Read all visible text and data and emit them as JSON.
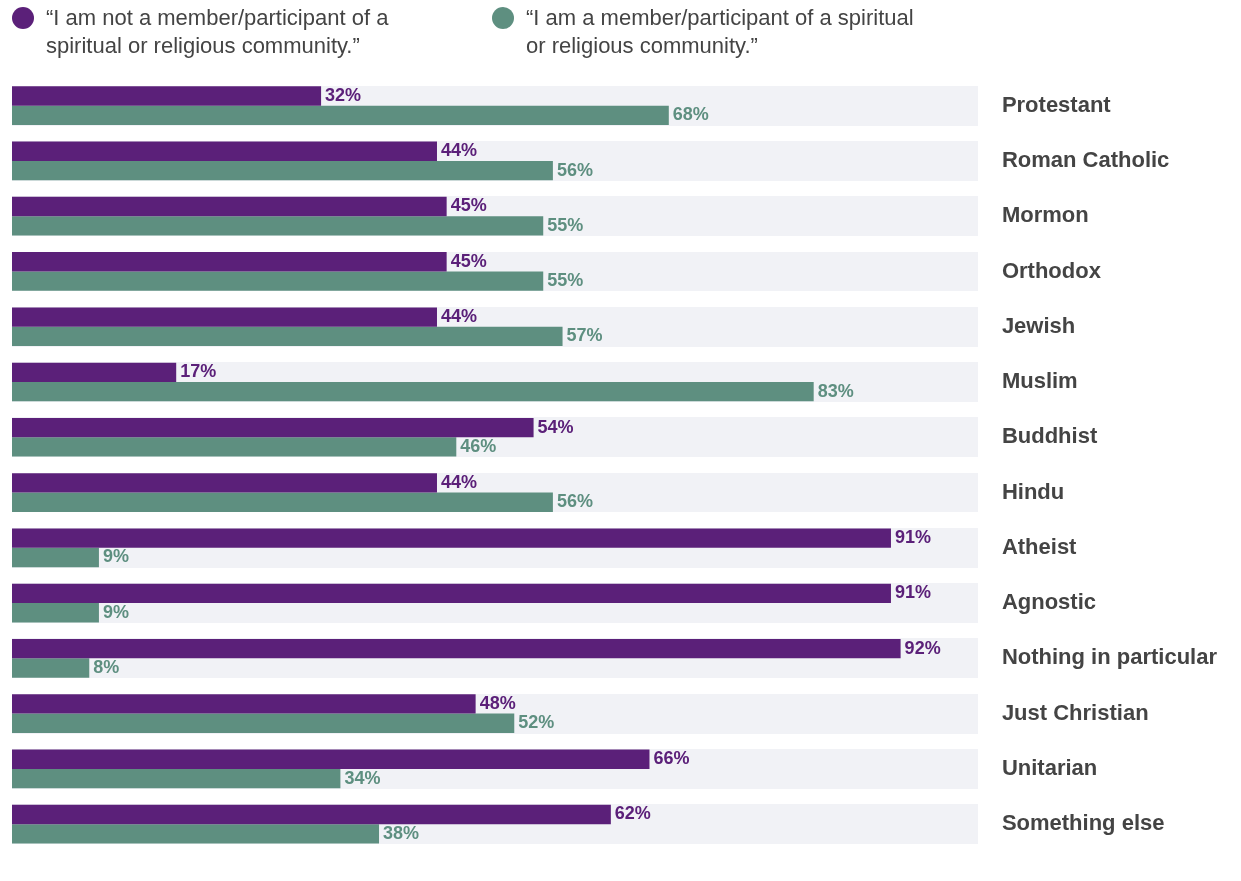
{
  "chart_data": {
    "type": "bar",
    "orientation": "horizontal",
    "legend": "top left",
    "categories": [
      "Protestant",
      "Roman Catholic",
      "Mormon",
      "Orthodox",
      "Jewish",
      "Muslim",
      "Buddhist",
      "Hindu",
      "Atheist",
      "Agnostic",
      "Nothing in particular",
      "Just Christian",
      "Unitarian",
      "Something else"
    ],
    "series": [
      {
        "name": "“I am not a member/participant of a spiritual or religious community.”",
        "color": "#5b2079",
        "values": [
          32,
          44,
          45,
          45,
          44,
          17,
          54,
          44,
          91,
          91,
          92,
          48,
          66,
          62
        ],
        "value_labels": [
          "32%",
          "44%",
          "45%",
          "45%",
          "44%",
          "17%",
          "54%",
          "44%",
          "91%",
          "91%",
          "92%",
          "48%",
          "66%",
          "62%"
        ]
      },
      {
        "name": "“I am a member/participant of a spiritual or religious community.”",
        "color": "#5e8f80",
        "values": [
          68,
          56,
          55,
          55,
          57,
          83,
          46,
          56,
          9,
          9,
          8,
          52,
          34,
          38
        ],
        "value_labels": [
          "68%",
          "56%",
          "55%",
          "55%",
          "57%",
          "83%",
          "46%",
          "56%",
          "9%",
          "9%",
          "8%",
          "52%",
          "34%",
          "38%"
        ]
      }
    ]
  }
}
